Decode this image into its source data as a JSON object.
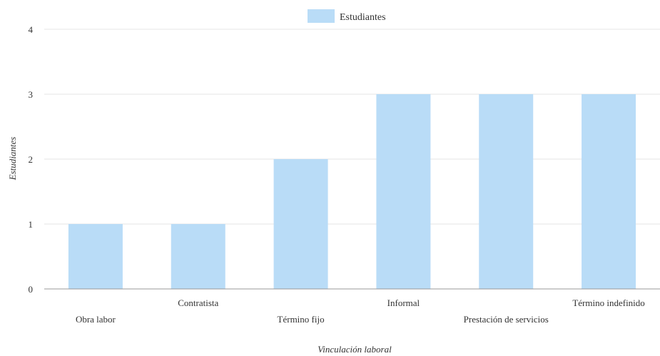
{
  "chart_data": {
    "type": "bar",
    "categories": [
      "Obra labor",
      "Contratista",
      "Término fijo",
      "Informal",
      "Prestación de servicios",
      "Término indefinido"
    ],
    "series": [
      {
        "name": "Estudiantes",
        "values": [
          1,
          1,
          2,
          3,
          3,
          3
        ],
        "color": "#b9dcf7"
      }
    ],
    "xlabel": "Vinculación laboral",
    "ylabel": "Estudiantes",
    "ylim": [
      0,
      4
    ],
    "yticks": [
      0,
      1,
      2,
      3,
      4
    ],
    "grid": true,
    "legend": "top-center",
    "grid_color": "#e6e6e6",
    "axis_color": "#999999"
  }
}
